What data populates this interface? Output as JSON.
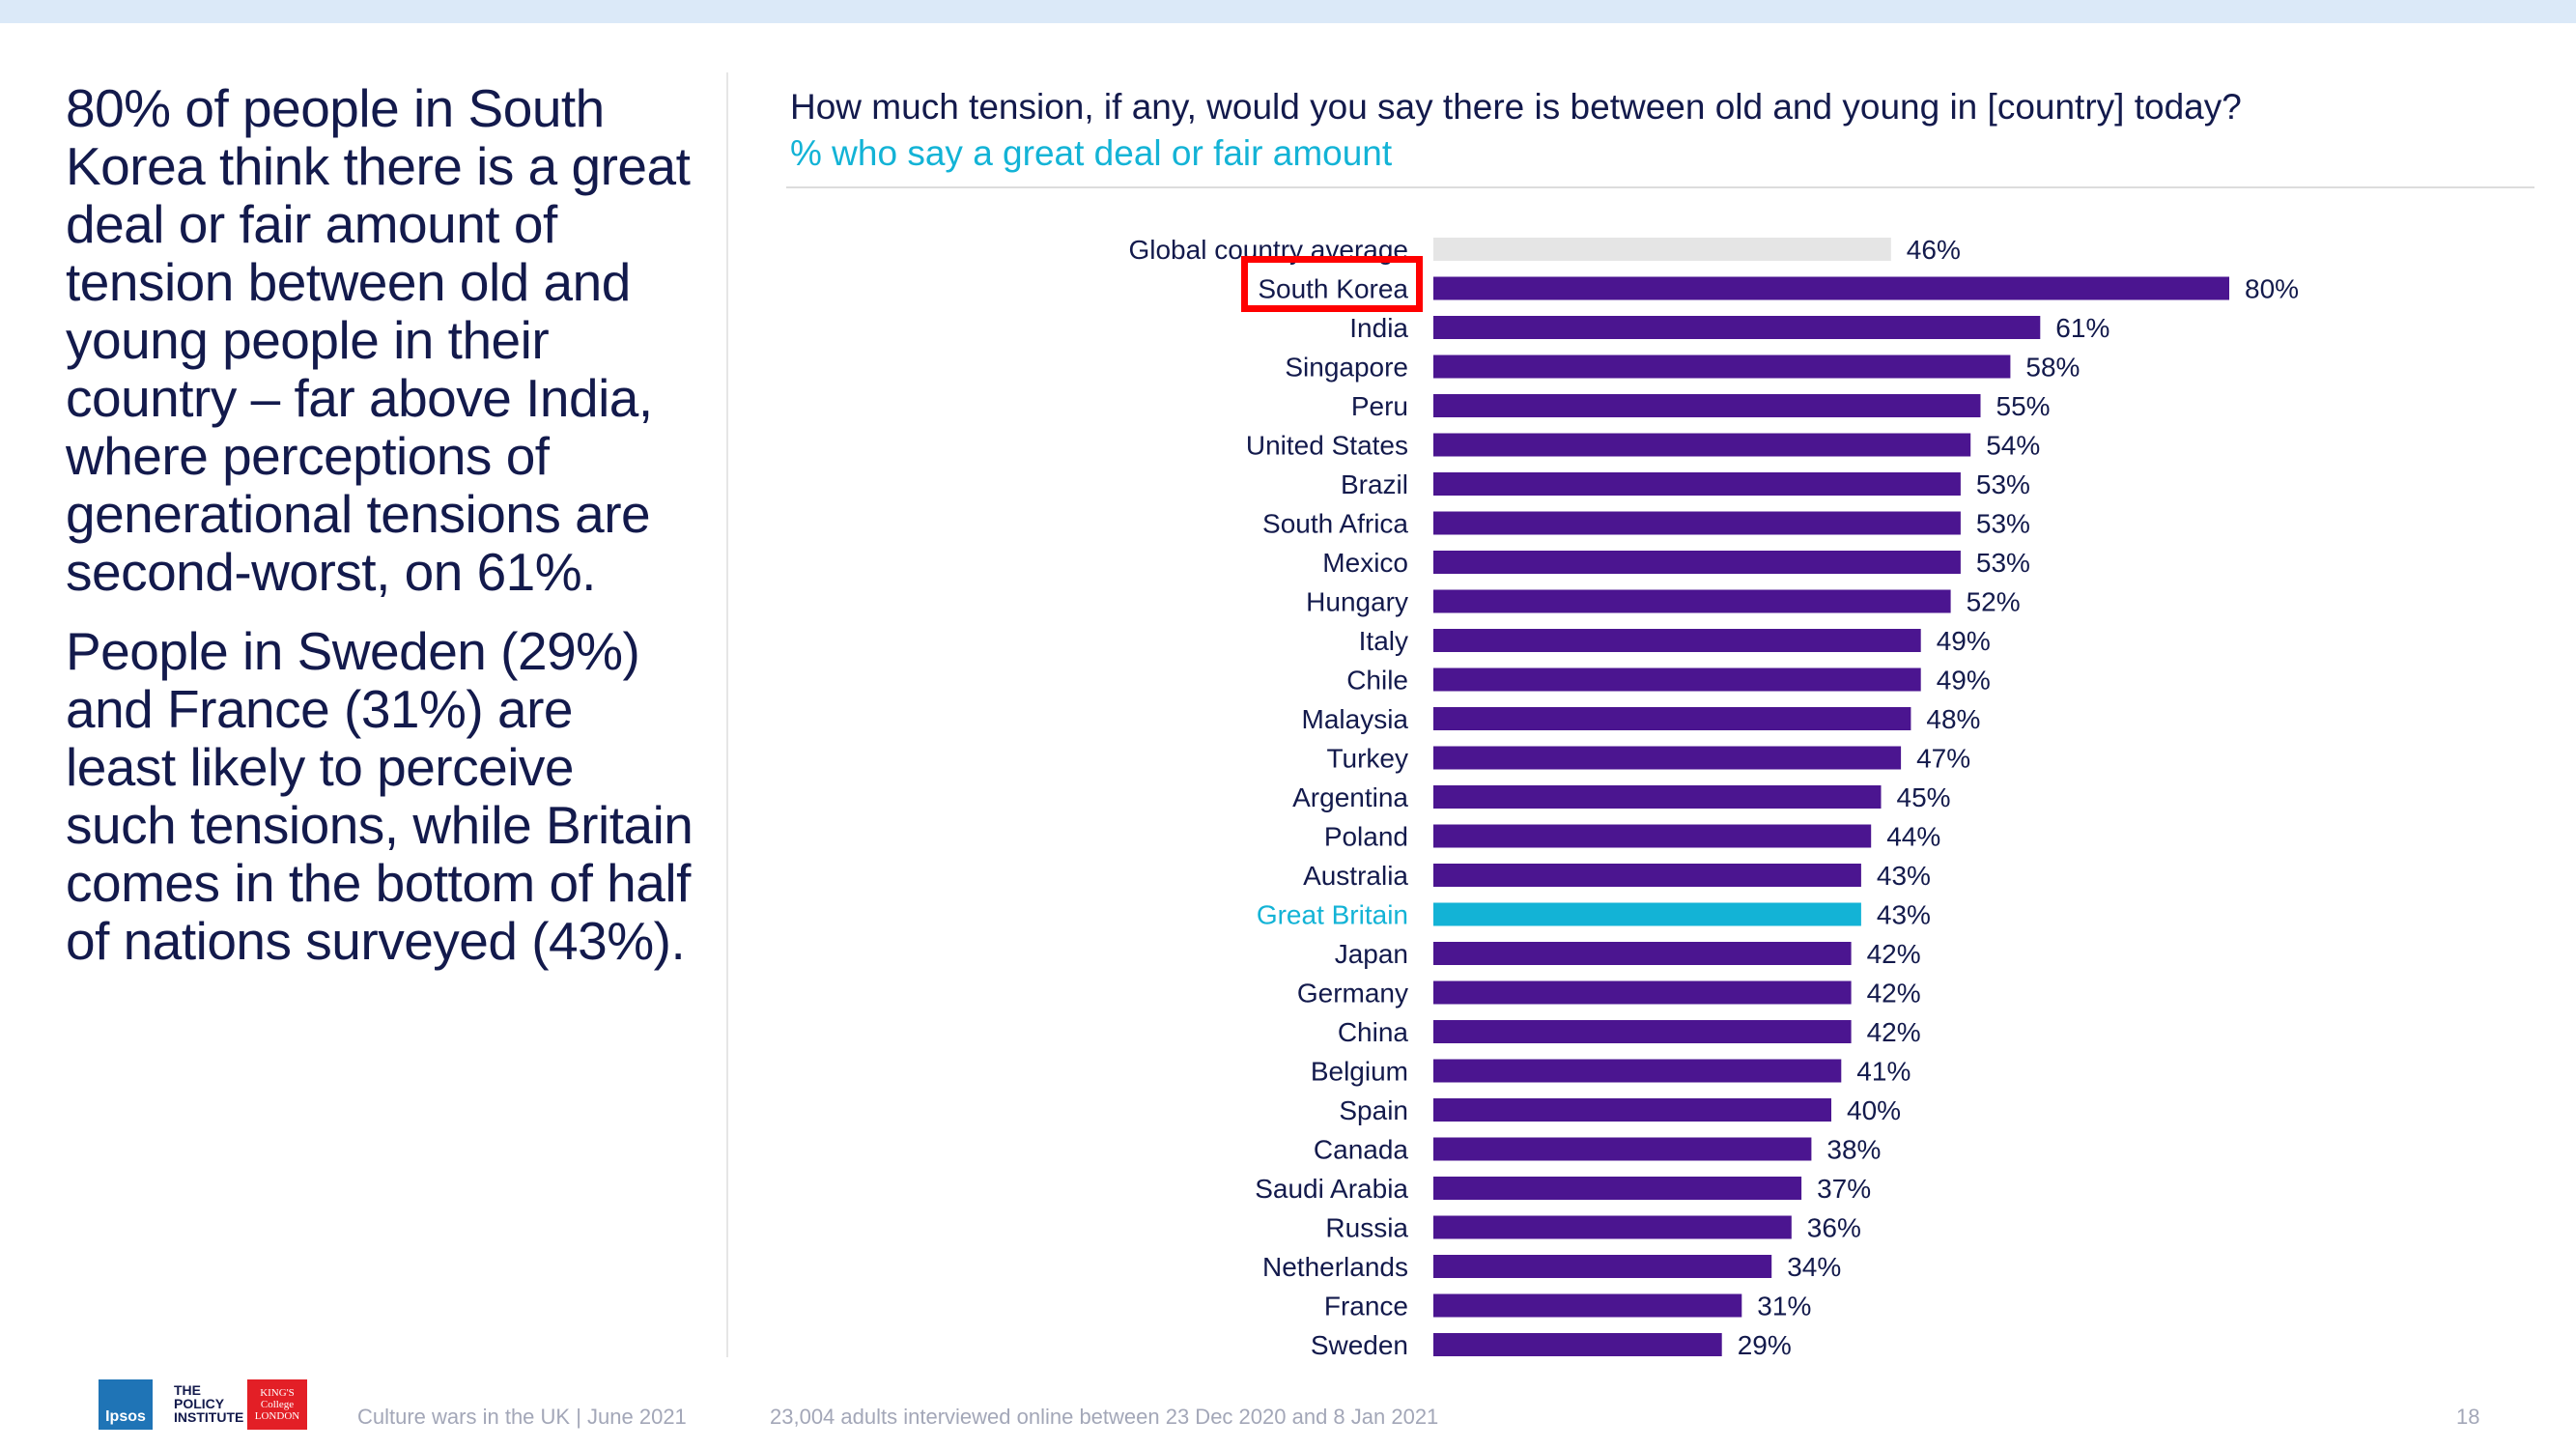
{
  "left_panel": {
    "paragraphs": [
      "80% of people in South Korea think there is a great deal or fair amount of tension between old and young people in their country – far above India, where perceptions of generational tensions are second-worst, on 61%.",
      "People in Sweden (29%) and France (31%) are least likely to perceive such tensions, while Britain comes in the bottom of half of nations surveyed (43%)."
    ]
  },
  "chart_data": {
    "type": "bar",
    "orientation": "horizontal",
    "title": "How much tension, if any, would you say there is between old and young in [country] today?",
    "subtitle": "% who say a great deal or fair amount",
    "categories": [
      "Global country average",
      "South Korea",
      "India",
      "Singapore",
      "Peru",
      "United States",
      "Brazil",
      "South Africa",
      "Mexico",
      "Hungary",
      "Italy",
      "Chile",
      "Malaysia",
      "Turkey",
      "Argentina",
      "Poland",
      "Australia",
      "Great Britain",
      "Japan",
      "Germany",
      "China",
      "Belgium",
      "Spain",
      "Canada",
      "Saudi Arabia",
      "Russia",
      "Netherlands",
      "France",
      "Sweden"
    ],
    "values": [
      46,
      80,
      61,
      58,
      55,
      54,
      53,
      53,
      53,
      52,
      49,
      49,
      48,
      47,
      45,
      44,
      43,
      43,
      42,
      42,
      42,
      41,
      40,
      38,
      37,
      36,
      34,
      31,
      29
    ],
    "value_suffix": "%",
    "highlighted": "South Korea",
    "xlim": [
      0,
      100
    ],
    "grid": false,
    "colors": {
      "default": "#4b1590",
      "average": "#e5e5e5",
      "great_britain": "#13b3d6",
      "label_default": "#131a4c",
      "label_great_britain": "#13b3d6"
    }
  },
  "footer": {
    "report": "Culture wars in the UK | June 2021",
    "source": "23,004 adults interviewed online between 23 Dec 2020 and 8 Jan 2021",
    "page": "18"
  },
  "logos": {
    "ipsos": "Ipsos",
    "policy_institute": [
      "THE",
      "POLICY",
      "INSTITUTE"
    ],
    "kings_college": [
      "KING'S",
      "College",
      "LONDON"
    ]
  }
}
